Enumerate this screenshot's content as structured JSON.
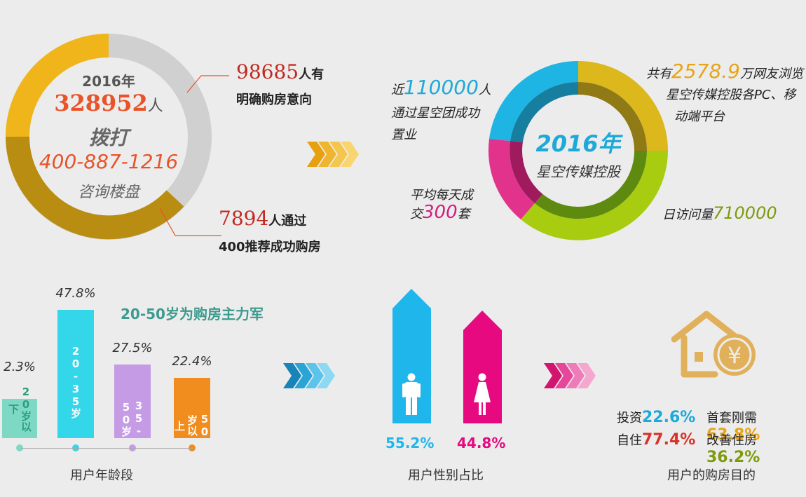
{
  "ring1": {
    "year": "2016年",
    "count": "328952",
    "count_unit": "人",
    "dial": "拨打",
    "phone": "400-887-1216",
    "consult": "咨询楼盘",
    "callout1": {
      "num": "98685",
      "suffix": "人有",
      "line2": "明确购房意向"
    },
    "callout2": {
      "num": "7894",
      "suffix": "人通过",
      "line2": "400推荐成功购房"
    }
  },
  "ring2": {
    "year": "2016年",
    "company": "星空传媒控股",
    "tl": {
      "prefix": "近",
      "num": "110000",
      "suffix": "人",
      "line2": "通过星空团成功",
      "line3": "置业"
    },
    "tr": {
      "prefix": "共有",
      "num": "2578.9",
      "suffix": "万网友浏览",
      "line2": "星空传媒控股各PC、移",
      "line3": "动端平台"
    },
    "bl": {
      "line1": "平均每天成",
      "prefix": "交",
      "num": "300",
      "suffix": "套"
    },
    "br": {
      "prefix": "日访问量",
      "num": "710000"
    }
  },
  "age": {
    "title": "20-50岁为购房主力军",
    "caption": "用户年龄段",
    "bars": [
      {
        "label": "20岁以下",
        "pct": "2.3%",
        "color": "#7ed9c4"
      },
      {
        "label": "20-35岁",
        "pct": "47.8%",
        "color": "#34d6ea"
      },
      {
        "label": "35-50岁",
        "pct": "27.5%",
        "color": "#c59be6"
      },
      {
        "label": "50岁以上",
        "pct": "22.4%",
        "color": "#f18c1e"
      }
    ]
  },
  "gender": {
    "caption": "用户性别占比",
    "male_pct": "55.2%",
    "female_pct": "44.8%",
    "male_color": "#1fb6ec",
    "female_color": "#e6097f"
  },
  "purpose": {
    "caption": "用户的购房目的",
    "invest_label": "投资",
    "invest_pct": "22.6%",
    "first_label": "首套刚需",
    "first_pct": "63.8%",
    "self_label": "自住",
    "self_pct": "77.4%",
    "improve_label": "改善住房",
    "improve_pct": "36.2%"
  },
  "colors": {
    "red": "#d9322a",
    "gold": "#e6a417",
    "cyan": "#1da9d9",
    "magenta": "#d21d7c",
    "green": "#7c9b0e"
  }
}
